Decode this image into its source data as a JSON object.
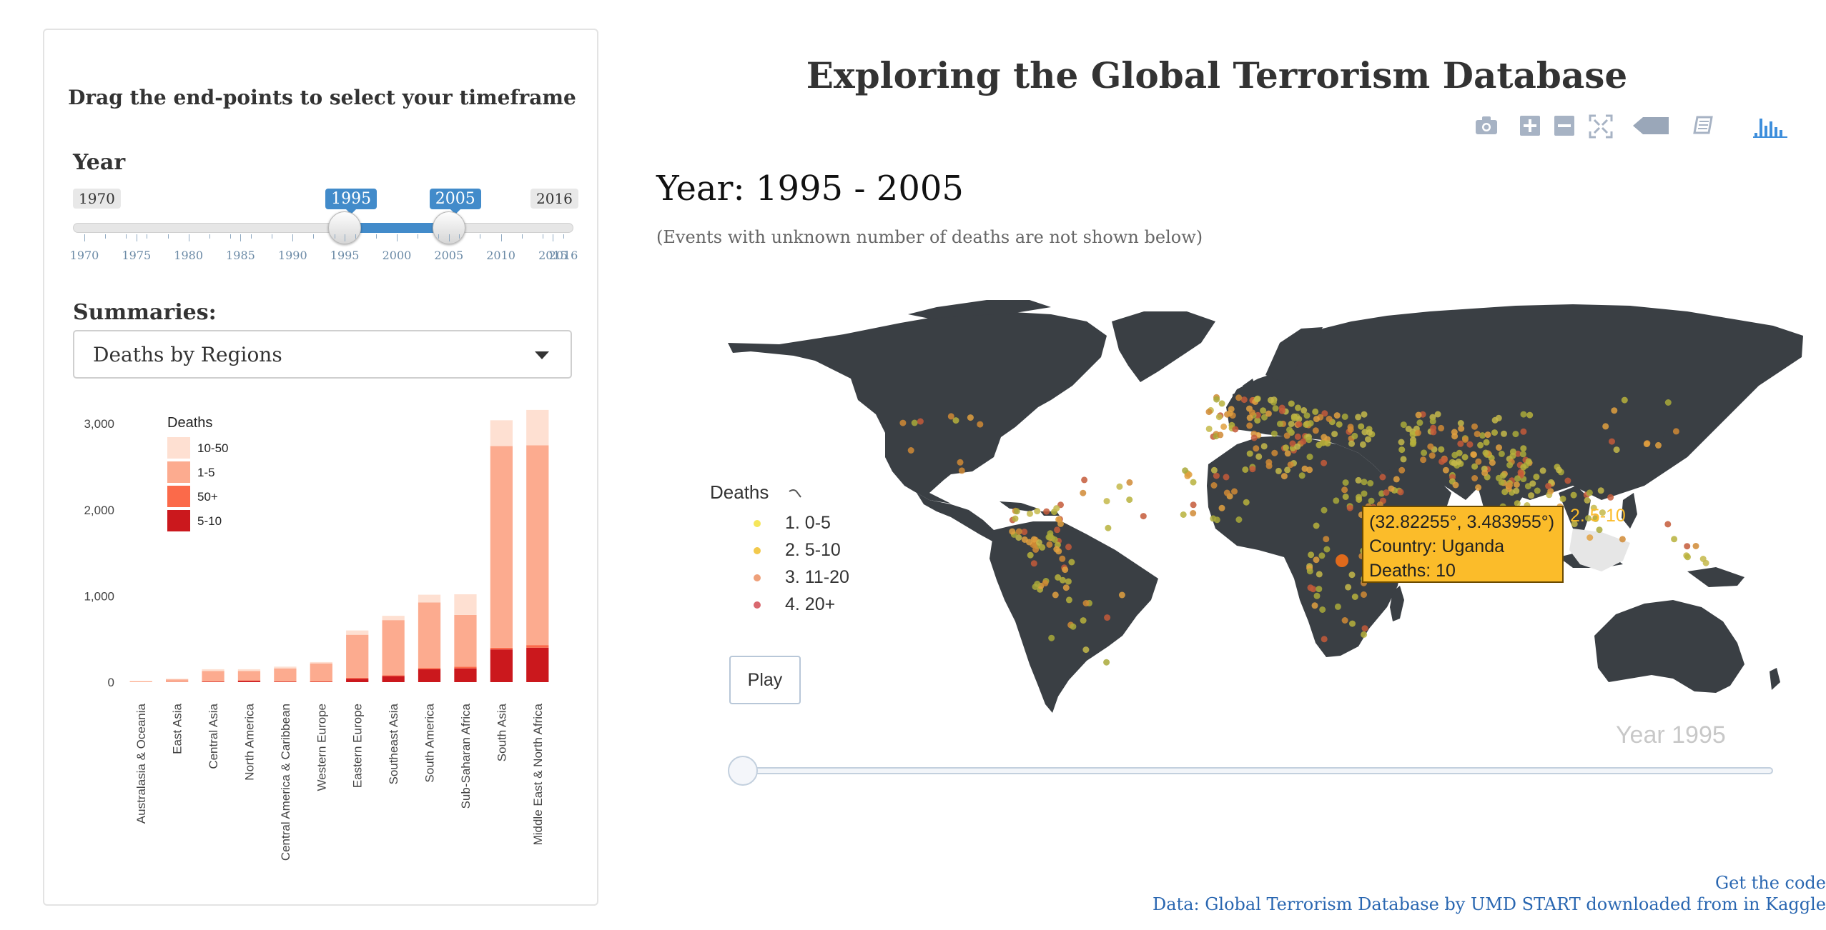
{
  "sidebar": {
    "heading": "Drag the end-points to select your timeframe",
    "year_label": "Year",
    "range": {
      "min": "1970",
      "max": "2016",
      "from": "1995",
      "to": "2005",
      "from_value": 1995,
      "to_value": 2005,
      "min_value": 1970,
      "max_value": 2016
    },
    "tick_labels": [
      "1970",
      "1975",
      "1980",
      "1985",
      "1990",
      "1995",
      "2000",
      "2005",
      "2010",
      "2015",
      "2016"
    ],
    "summaries_label": "Summaries:",
    "summary_select": {
      "selected": "Deaths by Regions"
    }
  },
  "header": {
    "title": "Exploring the Global Terrorism Database"
  },
  "toolbar": {
    "icons": [
      "camera-icon",
      "zoom-in-icon",
      "zoom-out-icon",
      "autoscale-icon",
      "hover-closest-icon",
      "hover-compare-icon",
      "plotly-logo-icon"
    ]
  },
  "main": {
    "year_heading": "Year: 1995 - 2005",
    "note": "(Events with unknown number of deaths are not shown below)"
  },
  "map": {
    "legend_title": "Deaths",
    "legend_items": [
      {
        "label": "1. 0-5",
        "color": "#f5e65b"
      },
      {
        "label": "2. 5-10",
        "color": "#f2c94c"
      },
      {
        "label": "3. 11-20",
        "color": "#eea07a"
      },
      {
        "label": "4. 20+",
        "color": "#d9686f"
      }
    ],
    "tooltip": {
      "coords": "(32.82255°, 3.483955°)",
      "country": "Country: Uganda",
      "deaths": "Deaths: 10",
      "trace": "2. 5-10"
    },
    "play_label": "Play",
    "animation_year": "Year 1995",
    "animation_progress": 0
  },
  "colors": {
    "accent": "#428bca",
    "land": "#3a3f44",
    "tooltip": "#fbbc2a",
    "link": "#2a67b1"
  },
  "chart_data": {
    "type": "bar",
    "stacked": true,
    "legend_title": "Deaths",
    "legend_position": "top-left",
    "categories": [
      "Australasia & Oceania",
      "East Asia",
      "Central Asia",
      "North America",
      "Central America & Caribbean",
      "Western Europe",
      "Eastern Europe",
      "Southeast Asia",
      "South America",
      "Sub-Saharan Africa",
      "South Asia",
      "Middle East & North Africa"
    ],
    "series": [
      {
        "name": "5-10",
        "color": "#cb181d",
        "values": [
          0,
          2,
          5,
          15,
          5,
          4,
          40,
          70,
          150,
          160,
          380,
          400
        ]
      },
      {
        "name": "50+",
        "color": "#fb6a4a",
        "values": [
          0,
          0,
          5,
          5,
          5,
          4,
          10,
          10,
          15,
          20,
          20,
          30
        ]
      },
      {
        "name": "1-5",
        "color": "#fcab8f",
        "values": [
          10,
          30,
          120,
          110,
          150,
          210,
          500,
          640,
          760,
          600,
          2340,
          2320
        ]
      },
      {
        "name": "10-50",
        "color": "#fee0d2",
        "values": [
          5,
          8,
          20,
          20,
          20,
          15,
          50,
          50,
          90,
          240,
          300,
          410
        ]
      }
    ],
    "legend_order": [
      "10-50",
      "1-5",
      "50+",
      "5-10"
    ],
    "yticks": [
      "0",
      "1,000",
      "2,000",
      "3,000"
    ],
    "ylim": [
      0,
      3300
    ],
    "grid": false
  },
  "footer": {
    "code_link": "Get the code",
    "source": "Data: Global Terrorism Database by UMD START downloaded from in Kaggle"
  }
}
